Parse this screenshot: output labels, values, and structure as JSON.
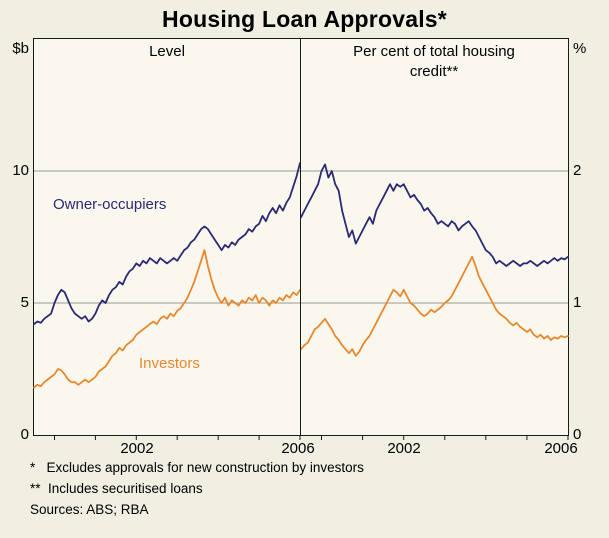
{
  "title": "Housing Loan Approvals*",
  "labels": {
    "panel_left_caption": "Level",
    "panel_right_caption_line1": "Per cent of total housing",
    "panel_right_caption_line2": "credit**",
    "series_label_owner": "Owner-occupiers",
    "series_label_investor": "Investors"
  },
  "axis": {
    "left_unit": "$b",
    "right_unit": "%",
    "left_ticks": [
      "10",
      "5",
      "0"
    ],
    "right_ticks": [
      "2",
      "1",
      "0"
    ],
    "x_ticks_left": [
      "2002",
      "2006"
    ],
    "x_ticks_right": [
      "2002",
      "2006"
    ]
  },
  "footnotes": {
    "line1": "*   Excludes approvals for new construction by investors",
    "line2": "**  Includes securitised loans",
    "line3": "Sources: ABS; RBA"
  },
  "colors": {
    "owner": "#2b2875",
    "investor": "#e8882d",
    "grid": "#9a9a90",
    "frame": "#1a1a1a",
    "background": "#f1eee2",
    "plot_background": "#faf8ee"
  },
  "chart_data": [
    {
      "type": "line",
      "panel": "left",
      "title": "Level",
      "ylabel": "$b",
      "ylim": [
        0,
        15
      ],
      "yticks": [
        0,
        5,
        10
      ],
      "x_start": 1999.5,
      "x_end": 2006,
      "x_frequency": "monthly",
      "xticks": [
        2002,
        2006
      ],
      "grid": true,
      "series": [
        {
          "name": "Owner-occupiers",
          "color": "#2b2875",
          "values": [
            4.2,
            4.3,
            4.25,
            4.4,
            4.5,
            4.6,
            5.0,
            5.3,
            5.5,
            5.4,
            5.1,
            4.8,
            4.6,
            4.5,
            4.4,
            4.5,
            4.3,
            4.4,
            4.6,
            4.9,
            5.1,
            5.0,
            5.3,
            5.5,
            5.6,
            5.8,
            5.7,
            6.0,
            6.2,
            6.3,
            6.5,
            6.4,
            6.6,
            6.5,
            6.7,
            6.6,
            6.5,
            6.7,
            6.6,
            6.5,
            6.6,
            6.7,
            6.6,
            6.8,
            7.0,
            7.1,
            7.3,
            7.4,
            7.6,
            7.8,
            7.9,
            7.8,
            7.6,
            7.4,
            7.2,
            7.0,
            7.2,
            7.1,
            7.3,
            7.2,
            7.4,
            7.5,
            7.6,
            7.8,
            7.7,
            7.9,
            8.0,
            8.3,
            8.1,
            8.4,
            8.6,
            8.4,
            8.7,
            8.5,
            8.8,
            9.0,
            9.4,
            9.8,
            10.3
          ]
        },
        {
          "name": "Investors",
          "color": "#e8882d",
          "values": [
            1.8,
            1.9,
            1.85,
            2.0,
            2.1,
            2.2,
            2.3,
            2.5,
            2.45,
            2.3,
            2.1,
            2.0,
            2.0,
            1.9,
            2.0,
            2.1,
            2.0,
            2.1,
            2.2,
            2.4,
            2.5,
            2.6,
            2.8,
            3.0,
            3.1,
            3.3,
            3.2,
            3.4,
            3.5,
            3.6,
            3.8,
            3.9,
            4.0,
            4.1,
            4.2,
            4.3,
            4.2,
            4.4,
            4.5,
            4.4,
            4.6,
            4.5,
            4.7,
            4.8,
            5.0,
            5.2,
            5.5,
            5.8,
            6.2,
            6.6,
            7.0,
            6.4,
            5.9,
            5.5,
            5.2,
            5.0,
            5.2,
            4.9,
            5.1,
            5.0,
            4.9,
            5.1,
            5.0,
            5.2,
            5.1,
            5.3,
            5.0,
            5.2,
            5.1,
            4.9,
            5.1,
            5.0,
            5.2,
            5.1,
            5.3,
            5.2,
            5.4,
            5.3,
            5.5
          ]
        }
      ]
    },
    {
      "type": "line",
      "panel": "right",
      "title": "Per cent of total housing credit**",
      "ylabel": "%",
      "ylim": [
        0,
        3
      ],
      "yticks": [
        0,
        1,
        2
      ],
      "x_start": 1999.5,
      "x_end": 2006,
      "x_frequency": "monthly",
      "xticks": [
        2002,
        2006
      ],
      "grid": true,
      "series": [
        {
          "name": "Owner-occupiers",
          "color": "#2b2875",
          "values": [
            1.65,
            1.7,
            1.75,
            1.8,
            1.85,
            1.9,
            2.0,
            2.05,
            1.95,
            2.0,
            1.9,
            1.85,
            1.7,
            1.6,
            1.5,
            1.55,
            1.45,
            1.5,
            1.55,
            1.6,
            1.65,
            1.6,
            1.7,
            1.75,
            1.8,
            1.85,
            1.9,
            1.85,
            1.9,
            1.88,
            1.9,
            1.85,
            1.8,
            1.82,
            1.78,
            1.75,
            1.7,
            1.72,
            1.68,
            1.65,
            1.6,
            1.62,
            1.6,
            1.58,
            1.62,
            1.6,
            1.55,
            1.58,
            1.6,
            1.62,
            1.58,
            1.55,
            1.5,
            1.45,
            1.4,
            1.38,
            1.35,
            1.3,
            1.32,
            1.3,
            1.28,
            1.3,
            1.32,
            1.3,
            1.28,
            1.3,
            1.3,
            1.32,
            1.3,
            1.28,
            1.3,
            1.32,
            1.3,
            1.32,
            1.34,
            1.32,
            1.34,
            1.33,
            1.35
          ]
        },
        {
          "name": "Investors",
          "color": "#e8882d",
          "values": [
            0.65,
            0.68,
            0.7,
            0.75,
            0.8,
            0.82,
            0.85,
            0.88,
            0.84,
            0.8,
            0.75,
            0.72,
            0.68,
            0.65,
            0.62,
            0.65,
            0.6,
            0.63,
            0.68,
            0.72,
            0.75,
            0.8,
            0.85,
            0.9,
            0.95,
            1.0,
            1.05,
            1.1,
            1.08,
            1.05,
            1.1,
            1.05,
            1.0,
            0.98,
            0.95,
            0.92,
            0.9,
            0.92,
            0.95,
            0.93,
            0.95,
            0.97,
            1.0,
            1.02,
            1.05,
            1.1,
            1.15,
            1.2,
            1.25,
            1.3,
            1.35,
            1.28,
            1.2,
            1.15,
            1.1,
            1.05,
            1.0,
            0.95,
            0.92,
            0.9,
            0.88,
            0.85,
            0.83,
            0.85,
            0.82,
            0.8,
            0.78,
            0.8,
            0.76,
            0.74,
            0.76,
            0.73,
            0.75,
            0.72,
            0.74,
            0.73,
            0.75,
            0.74,
            0.75
          ]
        }
      ]
    }
  ]
}
